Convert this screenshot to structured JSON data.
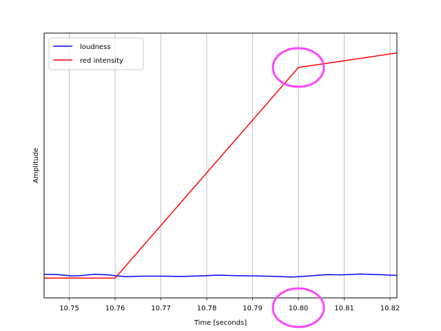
{
  "chart_data": {
    "type": "line",
    "xlabel": "Time [seconds]",
    "ylabel": "Amplitude",
    "xlim": [
      10.7445,
      10.8215
    ],
    "ylim": [
      0.0,
      1.0
    ],
    "x_ticks": [
      "10.75",
      "10.76",
      "10.77",
      "10.78",
      "10.79",
      "10.80",
      "10.81",
      "10.82"
    ],
    "x_tick_values": [
      10.75,
      10.76,
      10.77,
      10.78,
      10.79,
      10.8,
      10.81,
      10.82
    ],
    "grid": "vertical",
    "legend_position": "top-left",
    "series": [
      {
        "name": "loudness",
        "color": "#0000ff",
        "x": [
          10.7445,
          10.7475,
          10.7505,
          10.7525,
          10.7555,
          10.7585,
          10.7605,
          10.7625,
          10.7655,
          10.7705,
          10.7745,
          10.7785,
          10.7825,
          10.7865,
          10.7905,
          10.7955,
          10.7985,
          10.8025,
          10.8045,
          10.8065,
          10.8095,
          10.8135,
          10.8175,
          10.8215
        ],
        "y": [
          0.089,
          0.088,
          0.083,
          0.084,
          0.089,
          0.087,
          0.083,
          0.08,
          0.082,
          0.082,
          0.081,
          0.083,
          0.086,
          0.084,
          0.083,
          0.081,
          0.079,
          0.083,
          0.086,
          0.088,
          0.087,
          0.09,
          0.088,
          0.085
        ]
      },
      {
        "name": "red intensity",
        "color": "#ff0000",
        "x": [
          10.7445,
          10.76,
          10.8,
          10.8215
        ],
        "y": [
          0.075,
          0.075,
          0.87,
          0.925
        ]
      }
    ],
    "annotations": [
      {
        "shape": "ellipse",
        "x": 10.8,
        "y": 0.87,
        "color": "#ff44ff"
      },
      {
        "shape": "ellipse",
        "x": 10.8,
        "y": -0.037,
        "color": "#ff44ff"
      }
    ]
  }
}
